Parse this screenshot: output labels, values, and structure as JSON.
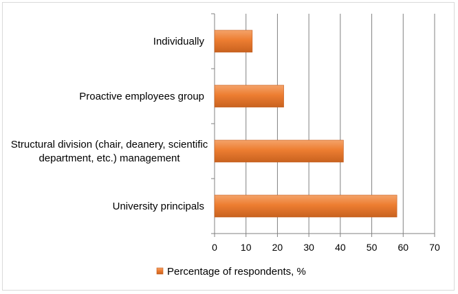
{
  "chart_data": {
    "type": "bar",
    "orientation": "horizontal",
    "categories": [
      [
        "University principals"
      ],
      [
        "Structural division (chair, deanery, scientific",
        "department, etc.) management"
      ],
      [
        "Proactive employees group"
      ],
      [
        "Individually"
      ]
    ],
    "series": [
      {
        "name": "Percentage of respondents, %",
        "values": [
          58,
          41,
          22,
          12
        ],
        "color": "#ED7D31"
      }
    ],
    "xlim": [
      0,
      70
    ],
    "xticks": [
      0,
      10,
      20,
      30,
      40,
      50,
      60,
      70
    ],
    "grid": "vertical",
    "legend": "bottom"
  }
}
